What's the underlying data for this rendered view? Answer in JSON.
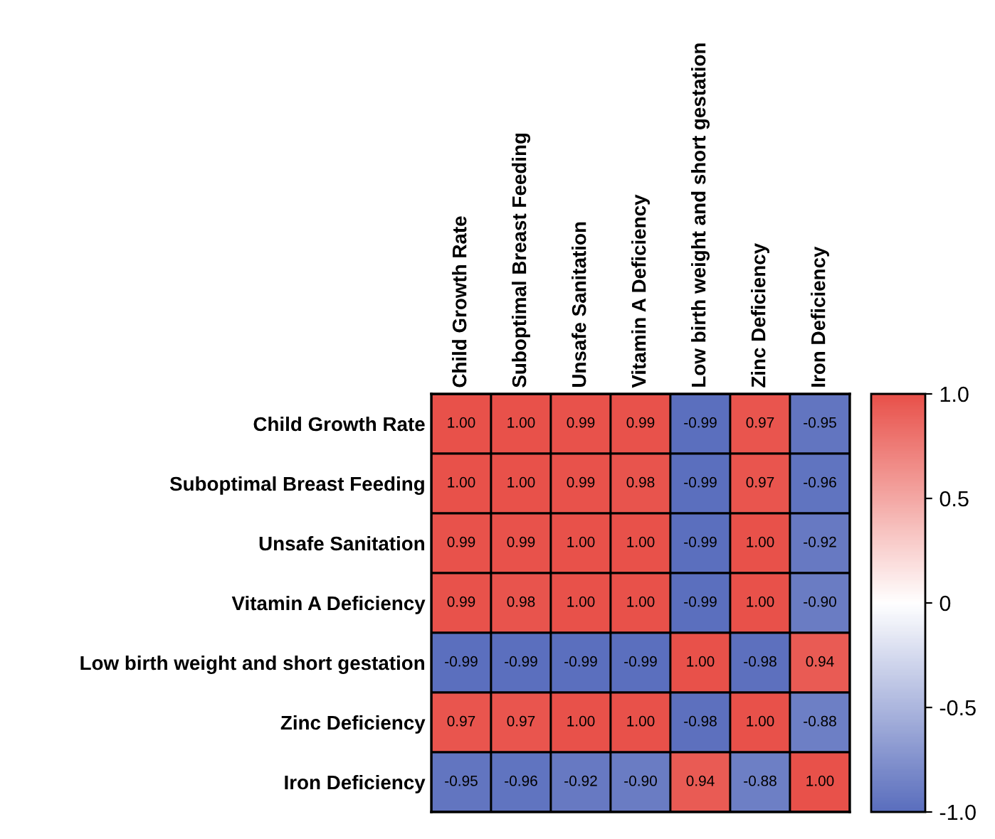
{
  "chart_data": {
    "type": "heatmap",
    "categories": [
      "Child Growth Rate",
      "Suboptimal Breast Feeding",
      "Unsafe Sanitation",
      "Vitamin A Deficiency",
      "Low birth weight and short gestation",
      "Zinc Deficiency",
      "Iron Deficiency"
    ],
    "y_categories": [
      "Child Growth Rate",
      "Suboptimal Breast Feeding",
      "Unsafe Sanitation",
      "Vitamin A Deficiency",
      "Low birth weight and short gestation",
      "Zinc Deficiency",
      "Iron Deficiency"
    ],
    "cells": [
      [
        1.0,
        1.0,
        0.99,
        0.99,
        -0.99,
        0.97,
        -0.95
      ],
      [
        1.0,
        1.0,
        0.99,
        0.98,
        -0.99,
        0.97,
        -0.96
      ],
      [
        0.99,
        0.99,
        1.0,
        1.0,
        -0.99,
        1.0,
        -0.92
      ],
      [
        0.99,
        0.98,
        1.0,
        1.0,
        -0.99,
        1.0,
        -0.9
      ],
      [
        -0.99,
        -0.99,
        -0.99,
        -0.99,
        1.0,
        -0.98,
        0.94
      ],
      [
        0.97,
        0.97,
        1.0,
        1.0,
        -0.98,
        1.0,
        -0.88
      ],
      [
        -0.95,
        -0.96,
        -0.92,
        -0.9,
        0.94,
        -0.88,
        1.0
      ]
    ],
    "cell_labels": [
      [
        "1.00",
        "1.00",
        "0.99",
        "0.99",
        "-0.99",
        "0.97",
        "-0.95"
      ],
      [
        "1.00",
        "1.00",
        "0.99",
        "0.98",
        "-0.99",
        "0.97",
        "-0.96"
      ],
      [
        "0.99",
        "0.99",
        "1.00",
        "1.00",
        "-0.99",
        "1.00",
        "-0.92"
      ],
      [
        "0.99",
        "0.98",
        "1.00",
        "1.00",
        "-0.99",
        "1.00",
        "-0.90"
      ],
      [
        "-0.99",
        "-0.99",
        "-0.99",
        "-0.99",
        "1.00",
        "-0.98",
        "0.94"
      ],
      [
        "0.97",
        "0.97",
        "1.00",
        "1.00",
        "-0.98",
        "1.00",
        "-0.88"
      ],
      [
        "-0.95",
        "-0.96",
        "-0.92",
        "-0.90",
        "0.94",
        "-0.88",
        "1.00"
      ]
    ],
    "colors": [
      "#5a6ebd",
      "#ffffff",
      "#e8514a"
    ],
    "clim": [
      -1.0,
      1.0
    ],
    "cticks": [
      {
        "value": 1.0,
        "label": "1.0"
      },
      0.5,
      0,
      -0.5,
      {
        "value": -1.0,
        "label": "-1.0"
      }
    ]
  }
}
